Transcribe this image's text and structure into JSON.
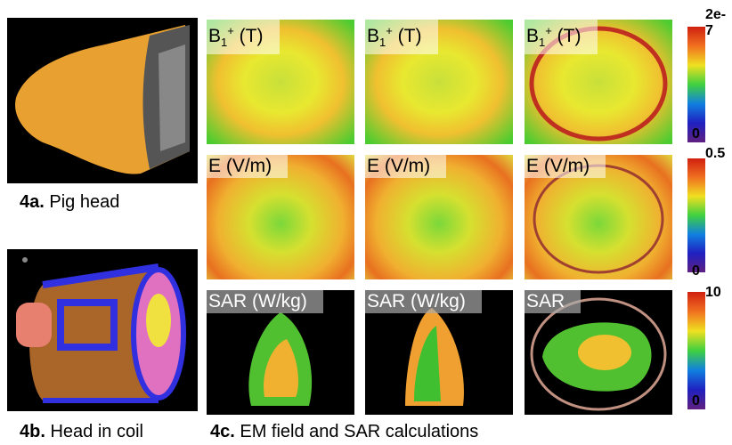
{
  "figure": {
    "left": [
      {
        "bold": "4a.",
        "text": " Pig head"
      },
      {
        "bold": "4b.",
        "text": " Head in coil"
      }
    ],
    "caption": {
      "bold": "4c.",
      "text": " EM field and SAR calculations"
    },
    "panels": [
      [
        {
          "base": "B",
          "sub": "1",
          "sup": "+",
          "rest": " (T)"
        },
        {
          "base": "B",
          "sub": "1",
          "sup": "+",
          "rest": " (T)"
        },
        {
          "base": "B",
          "sub": "1",
          "sup": "+",
          "rest": " (T)"
        }
      ],
      [
        {
          "base": "E (V/m)"
        },
        {
          "base": "E (V/m)"
        },
        {
          "base": "E (V/m)"
        }
      ],
      [
        {
          "base": "SAR (W/kg)"
        },
        {
          "base": "SAR (W/kg)"
        },
        {
          "base": "SAR"
        }
      ]
    ],
    "colorbars": [
      {
        "max": "2e-7",
        "min": "0"
      },
      {
        "max": "0.5",
        "min": "0"
      },
      {
        "max": "10",
        "min": "0"
      }
    ]
  }
}
